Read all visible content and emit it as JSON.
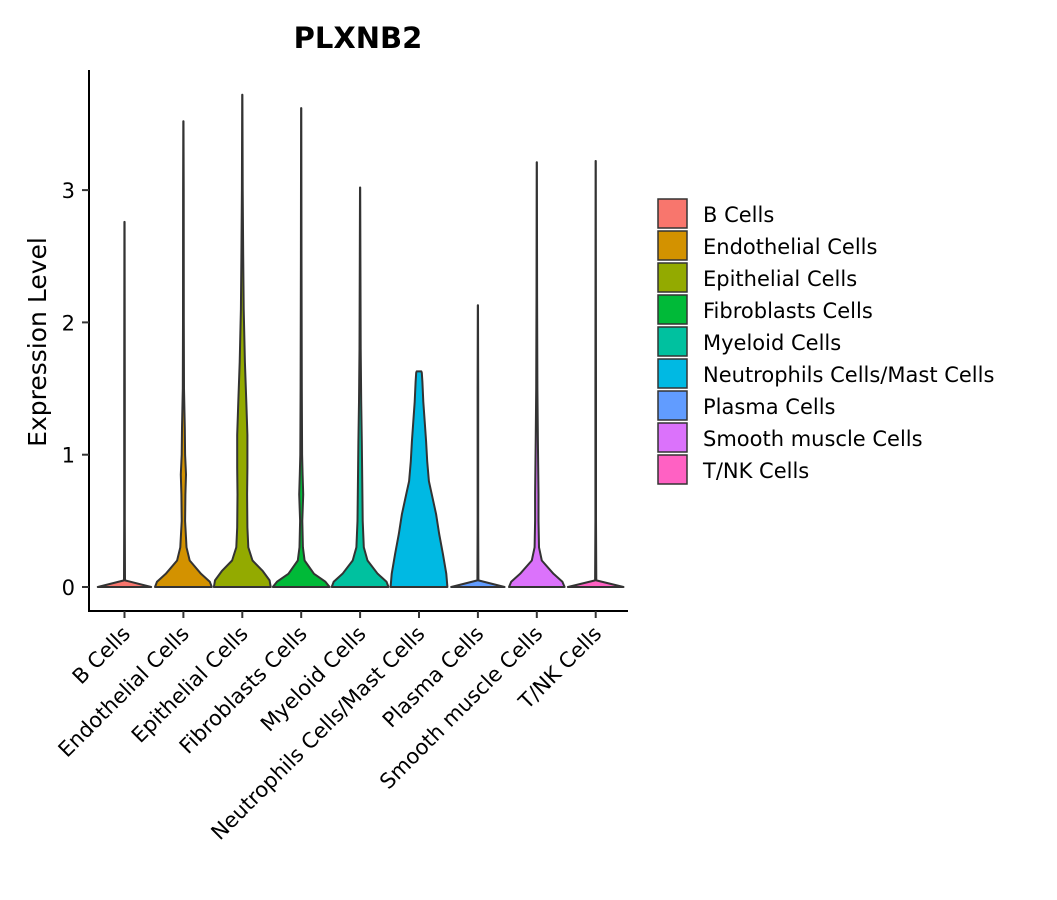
{
  "chart_data": {
    "type": "violin",
    "title": "PLXNB2",
    "xlabel": "",
    "ylabel": "Expression Level",
    "ylim": [
      -0.18,
      3.9
    ],
    "yticks": [
      0,
      1,
      2,
      3
    ],
    "categories": [
      "B Cells",
      "Endothelial Cells",
      "Epithelial Cells",
      "Fibroblasts Cells",
      "Myeloid Cells",
      "Neutrophils Cells/Mast Cells",
      "Plasma Cells",
      "Smooth muscle Cells",
      "T/NK Cells"
    ],
    "colors": [
      "#F8766D",
      "#D39200",
      "#93AA00",
      "#00BA38",
      "#00C19F",
      "#00B9E3",
      "#619CFF",
      "#DB72FB",
      "#FF61C3"
    ],
    "legend_position": "right",
    "series": [
      {
        "name": "B Cells",
        "max": 2.76,
        "density": [
          [
            0,
            1.0
          ],
          [
            0.05,
            0.02
          ],
          [
            0.5,
            0.01
          ],
          [
            1.5,
            0.01
          ],
          [
            2.76,
            0.005
          ]
        ]
      },
      {
        "name": "Endothelial Cells",
        "max": 3.52,
        "density": [
          [
            0,
            1.0
          ],
          [
            0.04,
            0.93
          ],
          [
            0.1,
            0.62
          ],
          [
            0.2,
            0.22
          ],
          [
            0.3,
            0.11
          ],
          [
            0.5,
            0.06
          ],
          [
            0.7,
            0.07
          ],
          [
            0.85,
            0.09
          ],
          [
            1.0,
            0.06
          ],
          [
            1.2,
            0.05
          ],
          [
            1.5,
            0.02
          ],
          [
            2.0,
            0.015
          ],
          [
            3.0,
            0.01
          ],
          [
            3.52,
            0.005
          ]
        ]
      },
      {
        "name": "Epithelial Cells",
        "max": 3.72,
        "density": [
          [
            0,
            1.0
          ],
          [
            0.05,
            0.96
          ],
          [
            0.12,
            0.72
          ],
          [
            0.2,
            0.36
          ],
          [
            0.3,
            0.21
          ],
          [
            0.45,
            0.18
          ],
          [
            0.7,
            0.17
          ],
          [
            0.9,
            0.18
          ],
          [
            1.15,
            0.18
          ],
          [
            1.4,
            0.14
          ],
          [
            1.7,
            0.09
          ],
          [
            2.1,
            0.05
          ],
          [
            2.5,
            0.03
          ],
          [
            3.0,
            0.015
          ],
          [
            3.72,
            0.005
          ]
        ]
      },
      {
        "name": "Fibroblasts Cells",
        "max": 3.62,
        "density": [
          [
            0,
            1.0
          ],
          [
            0.04,
            0.85
          ],
          [
            0.1,
            0.45
          ],
          [
            0.2,
            0.12
          ],
          [
            0.3,
            0.06
          ],
          [
            0.5,
            0.04
          ],
          [
            0.7,
            0.07
          ],
          [
            0.85,
            0.05
          ],
          [
            1.0,
            0.03
          ],
          [
            1.5,
            0.02
          ],
          [
            2.5,
            0.01
          ],
          [
            3.62,
            0.005
          ]
        ]
      },
      {
        "name": "Myeloid Cells",
        "max": 3.02,
        "density": [
          [
            0,
            1.0
          ],
          [
            0.04,
            0.93
          ],
          [
            0.1,
            0.62
          ],
          [
            0.2,
            0.26
          ],
          [
            0.3,
            0.13
          ],
          [
            0.5,
            0.09
          ],
          [
            0.7,
            0.08
          ],
          [
            0.9,
            0.07
          ],
          [
            1.1,
            0.06
          ],
          [
            1.4,
            0.04
          ],
          [
            1.8,
            0.02
          ],
          [
            2.5,
            0.01
          ],
          [
            3.02,
            0.005
          ]
        ]
      },
      {
        "name": "Neutrophils Cells/Mast Cells",
        "max": 1.63,
        "density": [
          [
            0,
            1.0
          ],
          [
            0.1,
            0.96
          ],
          [
            0.25,
            0.84
          ],
          [
            0.4,
            0.71
          ],
          [
            0.55,
            0.6
          ],
          [
            0.7,
            0.45
          ],
          [
            0.8,
            0.35
          ],
          [
            0.95,
            0.29
          ],
          [
            1.1,
            0.25
          ],
          [
            1.25,
            0.2
          ],
          [
            1.4,
            0.15
          ],
          [
            1.55,
            0.12
          ],
          [
            1.62,
            0.1
          ],
          [
            1.63,
            0.08
          ]
        ]
      },
      {
        "name": "Plasma Cells",
        "max": 2.13,
        "density": [
          [
            0,
            1.0
          ],
          [
            0.05,
            0.02
          ],
          [
            0.5,
            0.01
          ],
          [
            1.5,
            0.01
          ],
          [
            2.13,
            0.005
          ]
        ]
      },
      {
        "name": "Smooth muscle Cells",
        "max": 3.21,
        "density": [
          [
            0,
            1.0
          ],
          [
            0.04,
            0.92
          ],
          [
            0.1,
            0.6
          ],
          [
            0.2,
            0.18
          ],
          [
            0.3,
            0.08
          ],
          [
            0.5,
            0.06
          ],
          [
            0.7,
            0.06
          ],
          [
            0.9,
            0.05
          ],
          [
            1.1,
            0.04
          ],
          [
            1.5,
            0.02
          ],
          [
            2.2,
            0.01
          ],
          [
            3.21,
            0.005
          ]
        ]
      },
      {
        "name": "T/NK Cells",
        "max": 3.22,
        "density": [
          [
            0,
            1.0
          ],
          [
            0.05,
            0.02
          ],
          [
            0.5,
            0.01
          ],
          [
            1.5,
            0.01
          ],
          [
            3.22,
            0.005
          ]
        ]
      }
    ],
    "zero_widths": [
      0.92,
      0.98,
      0.98,
      0.98,
      0.98,
      0.98,
      0.92,
      0.96,
      0.96
    ],
    "legend": [
      "B Cells",
      "Endothelial Cells",
      "Epithelial Cells",
      "Fibroblasts Cells",
      "Myeloid Cells",
      "Neutrophils Cells/Mast Cells",
      "Plasma Cells",
      "Smooth muscle Cells",
      "T/NK Cells"
    ]
  }
}
